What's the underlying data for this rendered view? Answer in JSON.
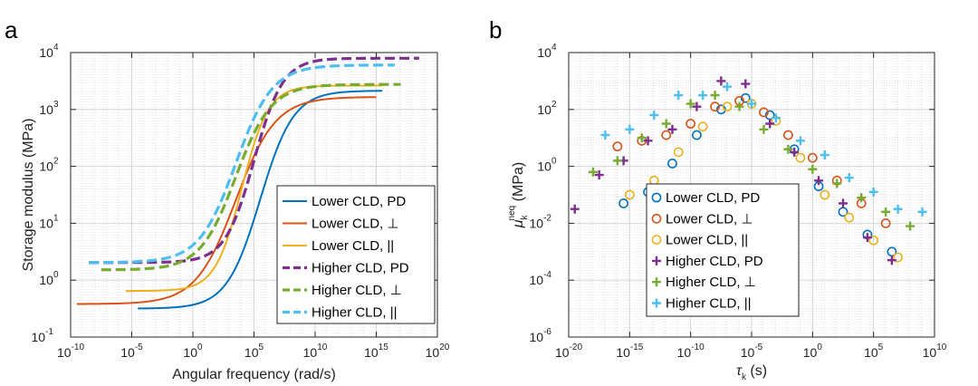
{
  "chart_data": [
    {
      "panel": "a",
      "type": "line",
      "xlabel": "Angular frequency (rad/s)",
      "ylabel": "Storage modulus (MPa)",
      "xscale": "log",
      "yscale": "log",
      "xlim_exp": [
        -10,
        20
      ],
      "ylim_exp": [
        -1,
        4
      ],
      "xticks": [
        {
          "base": "10",
          "exp": "-10"
        },
        {
          "base": "10",
          "exp": "-5"
        },
        {
          "base": "10",
          "exp": "0"
        },
        {
          "base": "10",
          "exp": "5"
        },
        {
          "base": "10",
          "exp": "10"
        },
        {
          "base": "10",
          "exp": "15"
        },
        {
          "base": "10",
          "exp": "20"
        }
      ],
      "yticks": [
        {
          "base": "10",
          "exp": "-1"
        },
        {
          "base": "10",
          "exp": "0"
        },
        {
          "base": "10",
          "exp": "1"
        },
        {
          "base": "10",
          "exp": "2"
        },
        {
          "base": "10",
          "exp": "3"
        },
        {
          "base": "10",
          "exp": "4"
        }
      ],
      "grid": true,
      "legend_position": "bottom-right",
      "series": [
        {
          "name": "Lower CLD, PD",
          "color": "#0072BD",
          "dash": "solid",
          "start_exp": -4.5,
          "end_exp": 15.5,
          "low_exp": -0.5,
          "high_exp": 3.33,
          "center_exp": 5.5,
          "width_exp": 3.0
        },
        {
          "name": "Lower CLD, ⊥",
          "color": "#D95319",
          "dash": "solid",
          "start_exp": -9.5,
          "end_exp": 15.0,
          "low_exp": -0.42,
          "high_exp": 3.22,
          "center_exp": 3.5,
          "width_exp": 3.6
        },
        {
          "name": "Lower CLD, ||",
          "color": "#EDB120",
          "dash": "solid",
          "start_exp": -5.5,
          "end_exp": 15.5,
          "low_exp": -0.19,
          "high_exp": 3.42,
          "center_exp": 4.0,
          "width_exp": 2.4
        },
        {
          "name": "Higher CLD, PD",
          "color": "#7E2F8E",
          "dash": "dashed",
          "start_exp": -8.5,
          "end_exp": 18.5,
          "low_exp": 0.31,
          "high_exp": 3.9,
          "center_exp": 5.0,
          "width_exp": 2.6
        },
        {
          "name": "Higher CLD, ⊥",
          "color": "#77AC30",
          "dash": "dashed",
          "start_exp": -7.5,
          "end_exp": 17.0,
          "low_exp": 0.18,
          "high_exp": 3.44,
          "center_exp": 3.5,
          "width_exp": 3.2
        },
        {
          "name": "Higher CLD, ||",
          "color": "#4DBEEE",
          "dash": "dashed",
          "start_exp": -8.5,
          "end_exp": 16.5,
          "low_exp": 0.31,
          "high_exp": 3.78,
          "center_exp": 3.5,
          "width_exp": 3.3
        }
      ]
    },
    {
      "panel": "b",
      "type": "scatter",
      "xlabel_symbol": "τ",
      "xlabel_sub": "k",
      "xlabel_unit": "(s)",
      "ylabel_symbol": "μ",
      "ylabel_sub": "k",
      "ylabel_sup": "neq",
      "ylabel_unit": "(MPa)",
      "xscale": "log",
      "yscale": "log",
      "xlim_exp": [
        -20,
        10
      ],
      "ylim_exp": [
        -6,
        4
      ],
      "xticks": [
        {
          "base": "10",
          "exp": "-20"
        },
        {
          "base": "10",
          "exp": "-15"
        },
        {
          "base": "10",
          "exp": "-10"
        },
        {
          "base": "10",
          "exp": "-5"
        },
        {
          "base": "10",
          "exp": "0"
        },
        {
          "base": "10",
          "exp": "5"
        },
        {
          "base": "10",
          "exp": "10"
        }
      ],
      "yticks": [
        {
          "base": "10",
          "exp": "-6"
        },
        {
          "base": "10",
          "exp": "-4"
        },
        {
          "base": "10",
          "exp": "-2"
        },
        {
          "base": "10",
          "exp": "0"
        },
        {
          "base": "10",
          "exp": "2"
        },
        {
          "base": "10",
          "exp": "4"
        }
      ],
      "grid": true,
      "legend_position": "bottom-left",
      "series": [
        {
          "name": "Lower CLD, PD",
          "color": "#0072BD",
          "marker": "circle",
          "x_exp": [
            -15.5,
            -13.5,
            -11.5,
            -9.5,
            -7.5,
            -5.5,
            -3.5,
            -1.5,
            0.5,
            2.5,
            4.5,
            6.5
          ],
          "y_exp": [
            -1.3,
            -0.9,
            0.1,
            1.1,
            2.0,
            2.4,
            1.8,
            0.6,
            -0.7,
            -1.6,
            -2.4,
            -3.0
          ]
        },
        {
          "name": "Lower CLD, ⊥",
          "color": "#D95319",
          "marker": "circle",
          "x_exp": [
            -16,
            -14,
            -12,
            -10,
            -8,
            -6,
            -4,
            -2,
            0,
            2,
            4,
            6
          ],
          "y_exp": [
            0.7,
            0.9,
            1.1,
            1.5,
            2.1,
            2.3,
            1.9,
            1.1,
            0.3,
            -0.5,
            -1.3,
            -2.0
          ]
        },
        {
          "name": "Lower CLD, ||",
          "color": "#EDB120",
          "marker": "circle",
          "x_exp": [
            -15,
            -13,
            -11,
            -9,
            -7,
            -5,
            -3,
            -1,
            1,
            3,
            5,
            7
          ],
          "y_exp": [
            -1.0,
            -0.5,
            0.5,
            1.4,
            2.1,
            2.2,
            1.6,
            0.3,
            -1.0,
            -1.8,
            -2.6,
            -3.2
          ]
        },
        {
          "name": "Higher CLD, PD",
          "color": "#7E2F8E",
          "marker": "plus",
          "x_exp": [
            -19.5,
            -17.5,
            -15.5,
            -13.5,
            -11.5,
            -9.5,
            -7.5,
            -5.5,
            -3.5,
            -1.5,
            0.5,
            2.5,
            4.5,
            6.5
          ],
          "y_exp": [
            -1.5,
            -0.3,
            0.2,
            0.9,
            1.3,
            2.1,
            3.0,
            2.9,
            1.5,
            0.5,
            -0.5,
            -1.3,
            -2.5,
            -3.3
          ]
        },
        {
          "name": "Higher CLD, ⊥",
          "color": "#77AC30",
          "marker": "plus",
          "x_exp": [
            -18,
            -16,
            -14,
            -12,
            -10,
            -8,
            -6,
            -4,
            -2,
            0,
            2,
            4,
            6,
            8
          ],
          "y_exp": [
            -0.2,
            0.2,
            1.0,
            1.5,
            2.2,
            2.5,
            2.1,
            1.3,
            0.6,
            -0.1,
            -0.6,
            -1.1,
            -1.6,
            -2.1
          ]
        },
        {
          "name": "Higher CLD, ||",
          "color": "#4DBEEE",
          "marker": "plus",
          "x_exp": [
            -17,
            -15,
            -13,
            -11,
            -9,
            -7,
            -5,
            -3,
            -1,
            1,
            3,
            5,
            7,
            9
          ],
          "y_exp": [
            1.1,
            1.3,
            1.8,
            2.5,
            2.5,
            2.8,
            2.2,
            1.7,
            0.9,
            0.4,
            -0.4,
            -0.9,
            -1.5,
            -1.6
          ]
        }
      ]
    }
  ]
}
